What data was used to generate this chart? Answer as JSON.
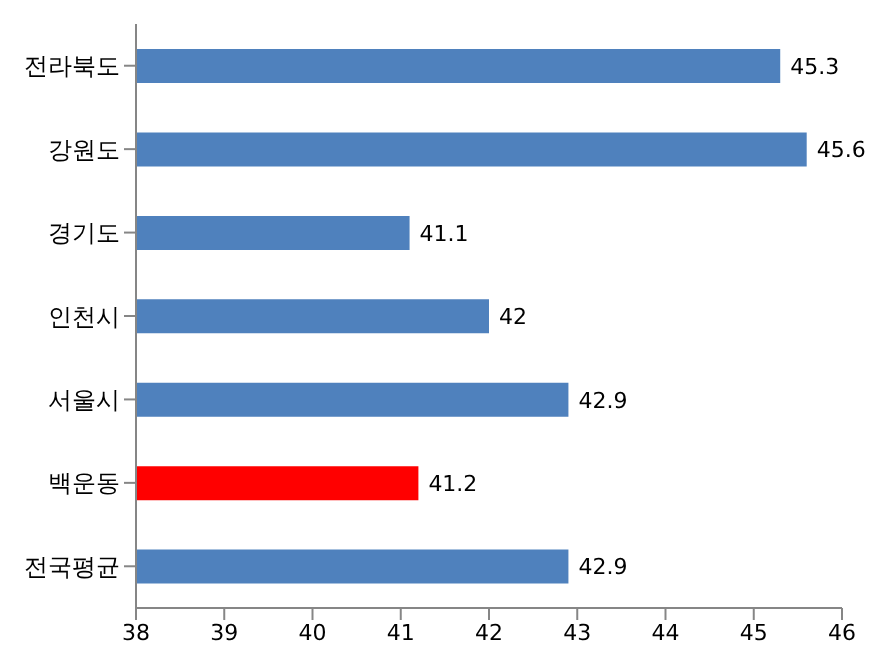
{
  "chart_data": {
    "type": "bar",
    "orientation": "horizontal",
    "categories": [
      "전라북도",
      "강원도",
      "경기도",
      "인천시",
      "서울시",
      "백운동",
      "전국평균"
    ],
    "values": [
      45.3,
      45.6,
      41.1,
      42,
      42.9,
      41.2,
      42.9
    ],
    "colors": [
      "#4f81bd",
      "#4f81bd",
      "#4f81bd",
      "#4f81bd",
      "#4f81bd",
      "#ff0000",
      "#4f81bd"
    ],
    "xlim": [
      38,
      46
    ],
    "xticks": [
      38,
      39,
      40,
      41,
      42,
      43,
      44,
      45,
      46
    ],
    "data_labels": true
  }
}
